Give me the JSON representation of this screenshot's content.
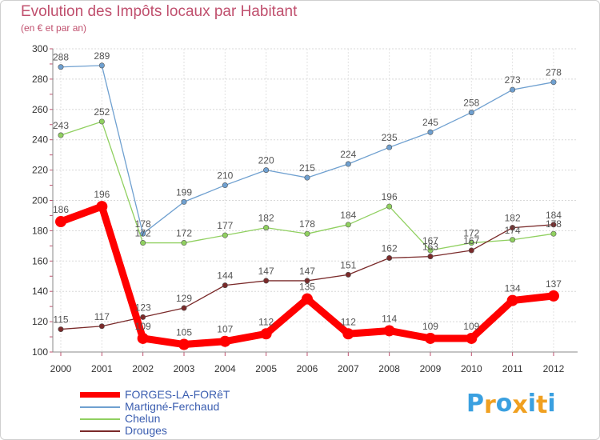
{
  "header": {
    "title": "Evolution des Impôts locaux par Habitant",
    "subtitle": "(en € et par an)"
  },
  "chart_data": {
    "type": "line",
    "title": "Evolution des Impôts locaux par Habitant",
    "ylabel": "(en € et par an)",
    "xlabel": "",
    "x": [
      "2000",
      "2001",
      "2002",
      "2003",
      "2004",
      "2005",
      "2006",
      "2007",
      "2008",
      "2009",
      "2010",
      "2011",
      "2012"
    ],
    "ylim": [
      100,
      300
    ],
    "yticks": [
      100,
      120,
      140,
      160,
      180,
      200,
      220,
      240,
      260,
      280,
      300
    ],
    "grid": true,
    "series": [
      {
        "name": "FORGES-LA-FORêT",
        "color": "#ff0000",
        "values": [
          186,
          196,
          109,
          105,
          107,
          112,
          135,
          112,
          114,
          109,
          109,
          134,
          137
        ]
      },
      {
        "name": "Martigné-Ferchaud",
        "color": "#6fa0d0",
        "values": [
          288,
          289,
          178,
          199,
          210,
          220,
          215,
          224,
          235,
          245,
          258,
          273,
          278
        ]
      },
      {
        "name": "Chelun",
        "color": "#90d060",
        "values": [
          243,
          252,
          172,
          172,
          177,
          182,
          178,
          184,
          196,
          167,
          172,
          174,
          178
        ]
      },
      {
        "name": "Drouges",
        "color": "#7a2a2a",
        "values": [
          115,
          117,
          123,
          129,
          144,
          147,
          147,
          151,
          162,
          163,
          167,
          182,
          184
        ]
      }
    ]
  },
  "legend": {
    "items": [
      {
        "label": "FORGES-LA-FORêT",
        "color": "#ff0000"
      },
      {
        "label": "Martigné-Ferchaud",
        "color": "#6fa0d0"
      },
      {
        "label": "Chelun",
        "color": "#90d060"
      },
      {
        "label": "Drouges",
        "color": "#7a2a2a"
      }
    ]
  },
  "logo": {
    "letters": [
      "P",
      "r",
      "o",
      "x",
      "i",
      "t",
      "i"
    ],
    "colors": [
      "#3aa0e0",
      "#f0a020",
      "#3aa0e0",
      "#f0a020",
      "#3aa0e0",
      "#f0a020",
      "#3aa0e0"
    ]
  }
}
